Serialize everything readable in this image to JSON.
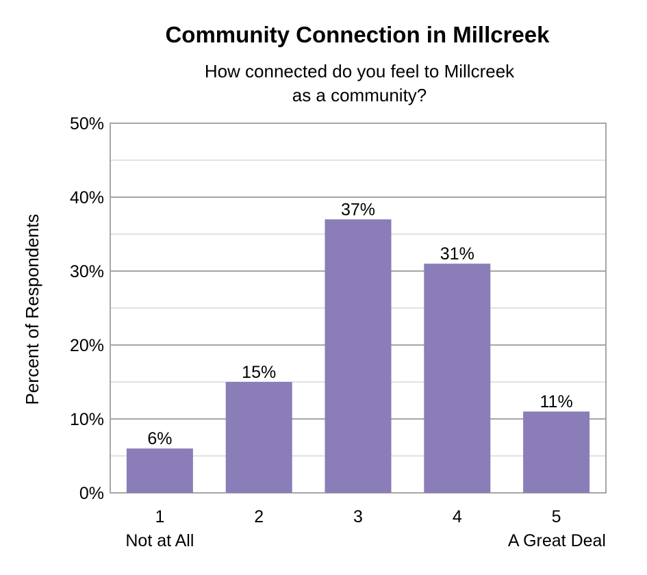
{
  "chart_data": {
    "type": "bar",
    "title": "Community Connection in Millcreek",
    "subtitle": [
      "How connected do you feel to Millcreek",
      "as a community?"
    ],
    "ylabel": "Percent of Respondents",
    "xlabel": "",
    "categories": [
      "1",
      "2",
      "3",
      "4",
      "5"
    ],
    "category_sublabels": [
      "Not at All",
      "",
      "",
      "",
      "A Great Deal"
    ],
    "values": [
      6,
      15,
      37,
      31,
      11
    ],
    "value_labels": [
      "6%",
      "15%",
      "37%",
      "31%",
      "11%"
    ],
    "ylim": [
      0,
      50
    ],
    "yticks": [
      0,
      10,
      20,
      30,
      40,
      50
    ],
    "ytick_labels": [
      "0%",
      "10%",
      "20%",
      "30%",
      "40%",
      "50%"
    ],
    "grid": true,
    "bar_color": "#8a7db8"
  }
}
